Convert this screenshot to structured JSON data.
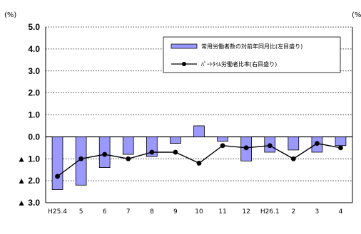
{
  "chart_data": {
    "type": "bar",
    "categories": [
      "H25.4",
      "5",
      "6",
      "7",
      "8",
      "9",
      "10",
      "11",
      "12",
      "H26.1",
      "2",
      "3",
      "4"
    ],
    "y_unit_left": "(%)",
    "y_unit_right": "(%",
    "ylim": [
      -3.0,
      5.0
    ],
    "ytick_values": [
      5.0,
      4.0,
      3.0,
      2.0,
      1.0,
      0.0,
      -1.0,
      -2.0,
      -3.0
    ],
    "ytick_labels": [
      "5.0",
      "4.0",
      "3.0",
      "2.0",
      "1.0",
      "0.0",
      "▲ 1.0",
      "▲ 2.0",
      "▲ 3.0"
    ],
    "grid": true,
    "legend_position": "top-right",
    "colors": {
      "bar_fill": "#9999ff",
      "bar_stroke": "#000000",
      "line": "#000000",
      "grid": "#000000"
    },
    "series": [
      {
        "name": "常用労働者数の対前年同月比(左目盛り)",
        "kind": "bar",
        "values": [
          -2.4,
          -2.2,
          -1.4,
          -0.8,
          -0.9,
          -0.3,
          0.5,
          -0.2,
          -1.1,
          -0.7,
          -0.6,
          -0.7,
          -0.4
        ]
      },
      {
        "name": "ﾊﾟｰﾄﾀｲﾑ労働者比率(右目盛り)",
        "kind": "line",
        "values": [
          -1.8,
          -1.0,
          -0.8,
          -1.0,
          -0.7,
          -0.7,
          -1.2,
          -0.4,
          -0.5,
          -0.4,
          -1.0,
          -0.3,
          -0.5
        ]
      }
    ]
  }
}
